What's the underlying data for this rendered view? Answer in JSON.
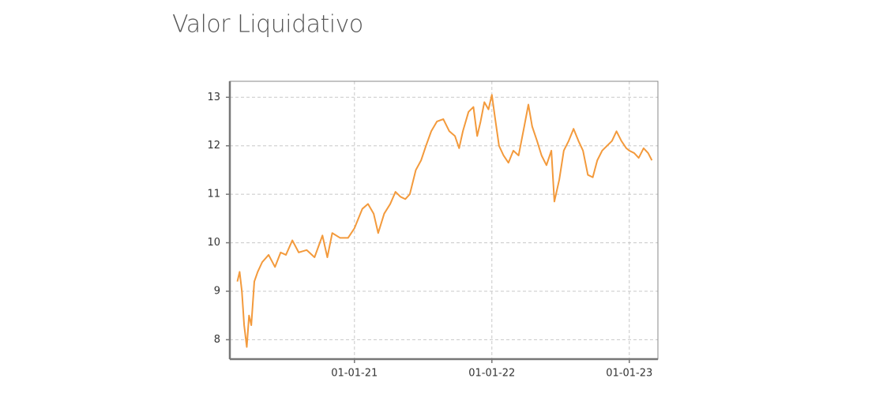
{
  "chart_data": {
    "type": "line",
    "title": "Valor Liquidativo",
    "color": "#f39a3c",
    "grid": true,
    "x": [
      "25-02-20",
      "02-03-20",
      "08-03-20",
      "14-03-20",
      "21-03-20",
      "27-03-20",
      "02-04-20",
      "10-04-20",
      "19-04-20",
      "01-05-20",
      "18-05-20",
      "04-06-20",
      "19-06-20",
      "03-07-20",
      "20-07-20",
      "06-08-20",
      "27-08-20",
      "17-09-20",
      "08-10-20",
      "21-10-20",
      "03-11-20",
      "24-11-20",
      "15-12-20",
      "01-01-21",
      "22-01-21",
      "06-02-21",
      "21-02-21",
      "05-03-21",
      "21-03-21",
      "06-04-21",
      "20-04-21",
      "03-05-21",
      "16-05-21",
      "28-05-21",
      "13-06-21",
      "27-06-21",
      "10-07-21",
      "24-07-21",
      "08-08-21",
      "25-08-21",
      "10-09-21",
      "25-09-21",
      "06-10-21",
      "16-10-21",
      "31-10-21",
      "13-11-21",
      "23-11-21",
      "02-12-21",
      "12-12-21",
      "23-12-21",
      "01-01-22",
      "09-01-22",
      "20-01-22",
      "01-02-22",
      "14-02-22",
      "27-02-22",
      "13-03-22",
      "28-03-22",
      "08-04-22",
      "18-04-22",
      "01-05-22",
      "13-05-22",
      "26-05-22",
      "08-06-22",
      "16-06-22",
      "29-06-22",
      "11-07-22",
      "24-07-22",
      "06-08-22",
      "19-08-22",
      "31-08-22",
      "13-09-22",
      "26-09-22",
      "08-10-22",
      "21-10-22",
      "03-11-22",
      "16-11-22",
      "28-11-22",
      "11-12-22",
      "24-12-22",
      "01-01-23",
      "14-01-23",
      "26-01-23",
      "08-02-23",
      "20-02-23",
      "02-03-23"
    ],
    "values": [
      9.2,
      9.4,
      9.0,
      8.3,
      7.85,
      8.5,
      8.3,
      9.2,
      9.4,
      9.6,
      9.75,
      9.5,
      9.8,
      9.75,
      10.05,
      9.8,
      9.85,
      9.7,
      10.15,
      9.7,
      10.2,
      10.1,
      10.1,
      10.3,
      10.7,
      10.8,
      10.6,
      10.2,
      10.6,
      10.8,
      11.05,
      10.95,
      10.9,
      11.0,
      11.5,
      11.7,
      12.0,
      12.3,
      12.5,
      12.55,
      12.3,
      12.2,
      11.95,
      12.3,
      12.7,
      12.8,
      12.2,
      12.5,
      12.9,
      12.75,
      13.05,
      12.6,
      12.0,
      11.8,
      11.65,
      11.9,
      11.8,
      12.4,
      12.85,
      12.4,
      12.1,
      11.8,
      11.6,
      11.9,
      10.85,
      11.3,
      11.9,
      12.1,
      12.35,
      12.1,
      11.9,
      11.4,
      11.35,
      11.7,
      11.9,
      12.0,
      12.1,
      12.3,
      12.1,
      11.95,
      11.9,
      11.85,
      11.75,
      11.95,
      11.85,
      11.7
    ],
    "xlim": [
      "05-02-20",
      "18-03-23"
    ],
    "xticks": [
      "01-01-21",
      "01-01-22",
      "01-01-23"
    ],
    "ylim": [
      7.6,
      13.33
    ],
    "yticks": [
      8,
      9,
      10,
      11,
      12,
      13
    ]
  }
}
